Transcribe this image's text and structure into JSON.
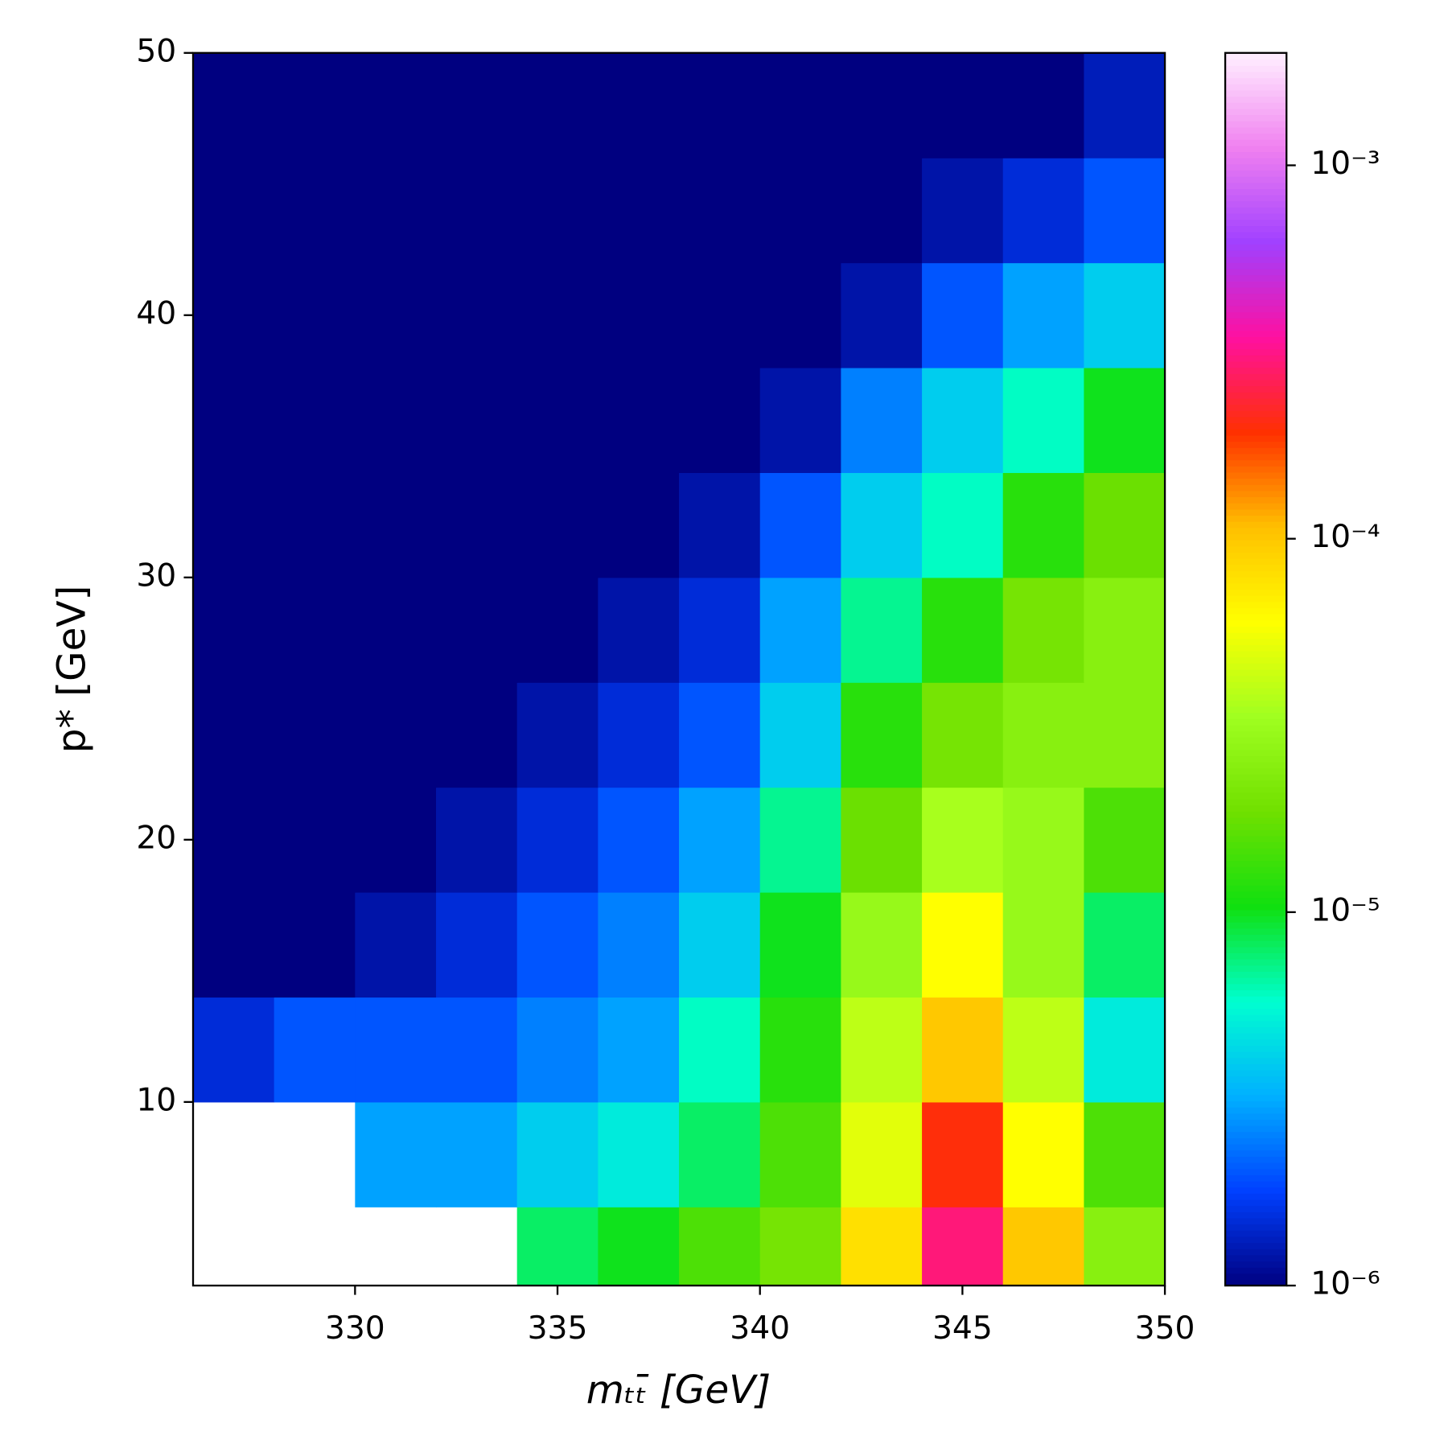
{
  "chart_data": {
    "type": "heatmap",
    "xlabel": "mₜₜ̄ [GeV]",
    "ylabel": "p* [GeV]",
    "x_bins": [
      326,
      328,
      330,
      332,
      334,
      336,
      338,
      340,
      342,
      344,
      346,
      348,
      350
    ],
    "y_bins": [
      3,
      6,
      10,
      14,
      18,
      22,
      26,
      30,
      34,
      38,
      42,
      46,
      50
    ],
    "values": [
      [
        null,
        null,
        null,
        null,
        8e-06,
        1e-05,
        1.5e-05,
        2e-05,
        8e-05,
        0.0003,
        0.0001,
        2.5e-05
      ],
      [
        null,
        null,
        3e-06,
        3e-06,
        4e-06,
        5e-06,
        8e-06,
        1.5e-05,
        5e-05,
        0.0002,
        6e-05,
        1.5e-05
      ],
      [
        1.5e-06,
        2e-06,
        2e-06,
        2e-06,
        2.5e-06,
        3e-06,
        6e-06,
        1.2e-05,
        4e-05,
        0.0001,
        4e-05,
        5e-06
      ],
      [
        1e-06,
        1e-06,
        1.2e-06,
        1.5e-06,
        2e-06,
        2.5e-06,
        4e-06,
        1e-05,
        3e-05,
        6e-05,
        3e-05,
        8e-06
      ],
      [
        1e-06,
        1e-06,
        1e-06,
        1.2e-06,
        1.5e-06,
        2e-06,
        3e-06,
        7e-06,
        1.8e-05,
        3.5e-05,
        3e-05,
        1.5e-05
      ],
      [
        1e-06,
        1e-06,
        1e-06,
        1e-06,
        1.2e-06,
        1.5e-06,
        2e-06,
        4e-06,
        1.2e-05,
        2e-05,
        2.5e-05,
        2.5e-05
      ],
      [
        1e-06,
        1e-06,
        1e-06,
        1e-06,
        1e-06,
        1.2e-06,
        1.5e-06,
        3e-06,
        7e-06,
        1.2e-05,
        2e-05,
        2.5e-05
      ],
      [
        1e-06,
        1e-06,
        1e-06,
        1e-06,
        1e-06,
        1e-06,
        1.2e-06,
        2e-06,
        4e-06,
        6e-06,
        1.2e-05,
        1.8e-05
      ],
      [
        1e-06,
        1e-06,
        1e-06,
        1e-06,
        1e-06,
        1e-06,
        1e-06,
        1.2e-06,
        2.5e-06,
        4e-06,
        6e-06,
        1e-05
      ],
      [
        1e-06,
        1e-06,
        1e-06,
        1e-06,
        1e-06,
        1e-06,
        1e-06,
        1e-06,
        1.2e-06,
        2e-06,
        3e-06,
        4e-06
      ],
      [
        1e-06,
        1e-06,
        1e-06,
        1e-06,
        1e-06,
        1e-06,
        1e-06,
        1e-06,
        1e-06,
        1.2e-06,
        1.5e-06,
        2e-06
      ],
      [
        1e-06,
        1e-06,
        1e-06,
        1e-06,
        1e-06,
        1e-06,
        1e-06,
        1e-06,
        1e-06,
        1e-06,
        1e-06,
        1.3e-06
      ]
    ],
    "xlim": [
      326,
      350
    ],
    "ylim": [
      3,
      50
    ],
    "xticks": [
      330,
      335,
      340,
      345,
      350
    ],
    "yticks": [
      10,
      20,
      30,
      40,
      50
    ],
    "zlim": [
      1e-06,
      0.002
    ],
    "zscale": "log",
    "zticks": [
      {
        "value": 1e-06,
        "label": "10⁻⁶"
      },
      {
        "value": 1e-05,
        "label": "10⁻⁵"
      },
      {
        "value": 0.0001,
        "label": "10⁻⁴"
      },
      {
        "value": 0.001,
        "label": "10⁻³"
      }
    ],
    "colormap": [
      "#000080",
      "#0040ff",
      "#00b0ff",
      "#00ffd0",
      "#10e010",
      "#70e000",
      "#a0ff20",
      "#ffff00",
      "#ffc000",
      "#ff3000",
      "#ff10a0",
      "#a040ff",
      "#f080f0",
      "#fff0ff"
    ]
  }
}
